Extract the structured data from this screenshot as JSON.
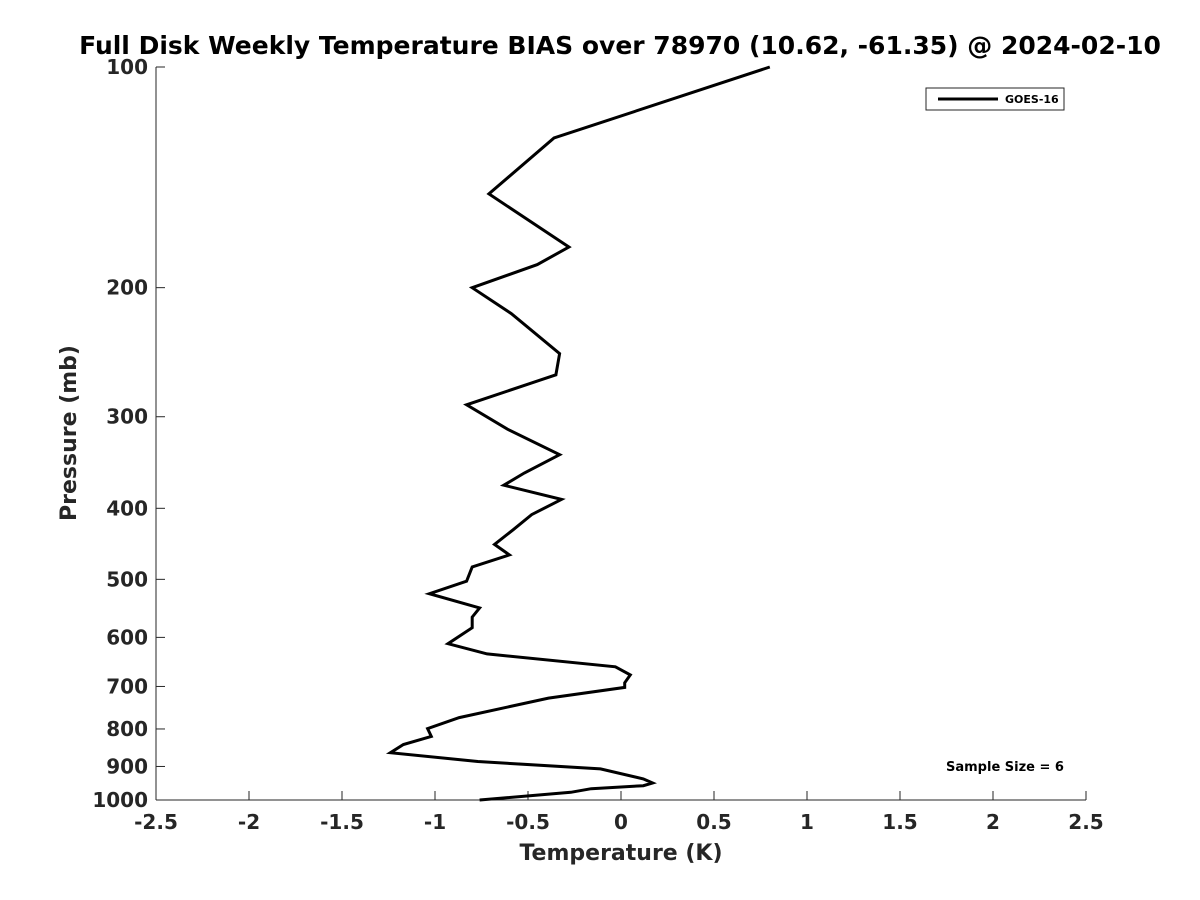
{
  "chart_data": {
    "type": "line",
    "title": "Full Disk Weekly Temperature BIAS over 78970 (10.62, -61.35) @ 2024-02-10",
    "xlabel": "Temperature (K)",
    "ylabel": "Pressure (mb)",
    "xlim": [
      -2.5,
      2.5
    ],
    "ylim": [
      100,
      1000
    ],
    "yscale": "log",
    "yreversed": true,
    "x_ticks": [
      "-2.5",
      "-2",
      "-1.5",
      "-1",
      "-0.5",
      "0",
      "0.5",
      "1",
      "1.5",
      "2",
      "2.5"
    ],
    "y_ticks": [
      "100",
      "200",
      "300",
      "400",
      "500",
      "600",
      "700",
      "800",
      "900",
      "1000"
    ],
    "grid": false,
    "legend_position": "top-right",
    "annotation": "Sample Size = 6",
    "series": [
      {
        "name": "GOES-16",
        "color": "#000000",
        "points": [
          [
            0.8,
            100
          ],
          [
            -0.36,
            125
          ],
          [
            -0.71,
            149
          ],
          [
            -0.28,
            176
          ],
          [
            -0.45,
            186
          ],
          [
            -0.8,
            200
          ],
          [
            -0.59,
            217
          ],
          [
            -0.33,
            246
          ],
          [
            -0.35,
            263
          ],
          [
            -0.83,
            289
          ],
          [
            -0.61,
            312
          ],
          [
            -0.33,
            338
          ],
          [
            -0.52,
            358
          ],
          [
            -0.63,
            372
          ],
          [
            -0.32,
            389
          ],
          [
            -0.48,
            408
          ],
          [
            -0.58,
            428
          ],
          [
            -0.68,
            448
          ],
          [
            -0.6,
            463
          ],
          [
            -0.8,
            481
          ],
          [
            -0.83,
            503
          ],
          [
            -1.03,
            523
          ],
          [
            -0.76,
            547
          ],
          [
            -0.8,
            563
          ],
          [
            -0.8,
            582
          ],
          [
            -0.93,
            612
          ],
          [
            -0.72,
            632
          ],
          [
            -0.03,
            658
          ],
          [
            0.05,
            675
          ],
          [
            0.02,
            692
          ],
          [
            0.02,
            702
          ],
          [
            -0.39,
            726
          ],
          [
            -0.87,
            772
          ],
          [
            -1.04,
            799
          ],
          [
            -1.02,
            819
          ],
          [
            -1.17,
            840
          ],
          [
            -1.24,
            862
          ],
          [
            -0.77,
            886
          ],
          [
            -0.11,
            907
          ],
          [
            0.12,
            936
          ],
          [
            0.17,
            948
          ],
          [
            0.12,
            956
          ],
          [
            -0.16,
            965
          ],
          [
            -0.27,
            976
          ],
          [
            -0.76,
            1000
          ]
        ]
      }
    ]
  }
}
